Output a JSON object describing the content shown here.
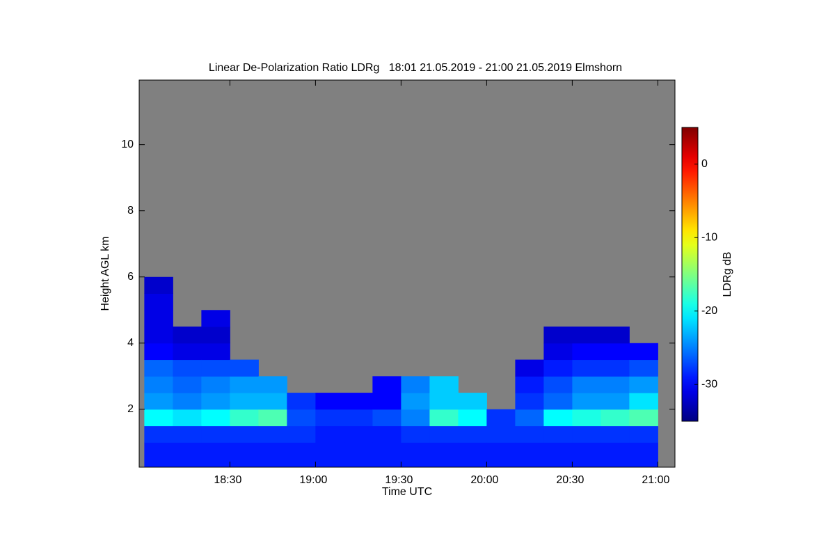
{
  "chart_data": {
    "type": "heatmap",
    "title": "Linear De-Polarization Ratio LDRg   18:01 21.05.2019 - 21:00 21.05.2019 Elmshorn",
    "x_label": "Time UTC",
    "y_label": "Height AGL km",
    "colorbar_label": "LDRg dB",
    "colormap": "jet",
    "missing_color": "#808080",
    "xlim": [
      17.97,
      21.1
    ],
    "ylim": [
      0.25,
      11.95
    ],
    "clim": [
      -35,
      5
    ],
    "xticks": [
      {
        "value": 18.5,
        "label": "18:30"
      },
      {
        "value": 19.0,
        "label": "19:00"
      },
      {
        "value": 19.5,
        "label": "19:30"
      },
      {
        "value": 20.0,
        "label": "20:00"
      },
      {
        "value": 20.5,
        "label": "20:30"
      },
      {
        "value": 21.0,
        "label": "21:00"
      }
    ],
    "yticks": [
      2,
      4,
      6,
      8,
      10
    ],
    "cticks": [
      -30,
      -20,
      -10,
      0
    ],
    "x_edges": [
      18.0,
      18.1667,
      18.3333,
      18.5,
      18.6667,
      18.8333,
      19.0,
      19.1667,
      19.3333,
      19.5,
      19.6667,
      19.8333,
      20.0,
      20.1667,
      20.3333,
      20.5,
      20.6667,
      20.8333,
      21.0
    ],
    "y_edges": [
      0.25,
      1,
      1.5,
      2,
      2.5,
      3,
      3.5,
      4,
      4.5,
      5,
      5.5,
      6
    ],
    "z": [
      [
        -29,
        -28,
        -20,
        -24,
        -25,
        -26,
        -30,
        -31,
        -31,
        -31,
        -32
      ],
      [
        -29,
        -28,
        -21,
        -25,
        -26,
        -27,
        -31,
        -32,
        null,
        null,
        null
      ],
      [
        -29,
        -28,
        -20,
        -24,
        -25,
        -27,
        -31,
        -32,
        -31,
        null,
        null
      ],
      [
        -29,
        -28,
        -18,
        -23,
        -24,
        -27,
        null,
        null,
        null,
        null,
        null
      ],
      [
        -29,
        -28,
        -17,
        -23,
        -24,
        null,
        null,
        null,
        null,
        null,
        null
      ],
      [
        -29,
        -28,
        -27,
        -28,
        null,
        null,
        null,
        null,
        null,
        null,
        null
      ],
      [
        -29,
        -29,
        -28,
        -30,
        null,
        null,
        null,
        null,
        null,
        null,
        null
      ],
      [
        -29,
        -29,
        -28,
        -30,
        null,
        null,
        null,
        null,
        null,
        null,
        null
      ],
      [
        -29,
        -29,
        -27,
        -30,
        -30,
        null,
        null,
        null,
        null,
        null,
        null
      ],
      [
        -29,
        -28,
        -25,
        -24,
        -25,
        null,
        null,
        null,
        null,
        null,
        null
      ],
      [
        -29,
        -28,
        -18,
        -22,
        -22,
        null,
        null,
        null,
        null,
        null,
        null
      ],
      [
        -29,
        -28,
        -20,
        -22,
        null,
        null,
        null,
        null,
        null,
        null,
        null
      ],
      [
        -29,
        -28,
        -28,
        null,
        null,
        null,
        null,
        null,
        null,
        null,
        null
      ],
      [
        -29,
        -28,
        -26,
        -28,
        -29,
        -31,
        null,
        null,
        null,
        null,
        null
      ],
      [
        -29,
        -28,
        -20,
        -26,
        -27,
        -29,
        -31,
        -32,
        null,
        null,
        null
      ],
      [
        -29,
        -28,
        -19,
        -24,
        -25,
        -28,
        -30,
        -32,
        null,
        null,
        null
      ],
      [
        -29,
        -28,
        -18,
        -24,
        -25,
        -28,
        -30,
        -32,
        null,
        null,
        null
      ],
      [
        -29,
        -28,
        -17,
        -21,
        -24,
        -27,
        -30,
        null,
        null,
        null,
        null
      ]
    ]
  }
}
